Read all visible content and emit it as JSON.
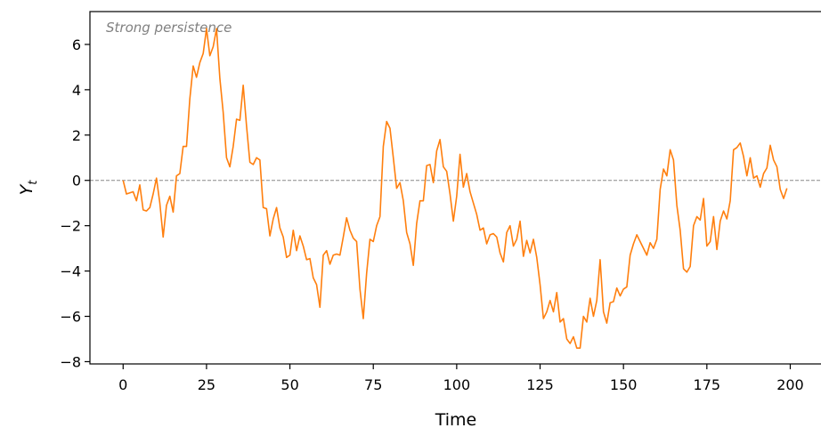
{
  "chart_data": {
    "type": "line",
    "annotation": "Strong persistence",
    "xlabel": "Time",
    "ylabel": "Y",
    "ylabel_subscript": "t",
    "color": "#ff7f0e",
    "reference_line": 0,
    "x": [
      0,
      1,
      2,
      3,
      4,
      5,
      6,
      7,
      8,
      9,
      10,
      11,
      12,
      13,
      14,
      15,
      16,
      17,
      18,
      19,
      20,
      21,
      22,
      23,
      24,
      25,
      26,
      27,
      28,
      29,
      30,
      31,
      32,
      33,
      34,
      35,
      36,
      37,
      38,
      39,
      40,
      41,
      42,
      43,
      44,
      45,
      46,
      47,
      48,
      49,
      50,
      51,
      52,
      53,
      54,
      55,
      56,
      57,
      58,
      59,
      60,
      61,
      62,
      63,
      64,
      65,
      66,
      67,
      68,
      69,
      70,
      71,
      72,
      73,
      74,
      75,
      76,
      77,
      78,
      79,
      80,
      81,
      82,
      83,
      84,
      85,
      86,
      87,
      88,
      89,
      90,
      91,
      92,
      93,
      94,
      95,
      96,
      97,
      98,
      99,
      100,
      101,
      102,
      103,
      104,
      105,
      106,
      107,
      108,
      109,
      110,
      111,
      112,
      113,
      114,
      115,
      116,
      117,
      118,
      119,
      120,
      121,
      122,
      123,
      124,
      125,
      126,
      127,
      128,
      129,
      130,
      131,
      132,
      133,
      134,
      135,
      136,
      137,
      138,
      139,
      140,
      141,
      142,
      143,
      144,
      145,
      146,
      147,
      148,
      149,
      150,
      151,
      152,
      153,
      154,
      155,
      156,
      157,
      158,
      159,
      160,
      161,
      162,
      163,
      164,
      165,
      166,
      167,
      168,
      169,
      170,
      171,
      172,
      173,
      174,
      175,
      176,
      177,
      178,
      179,
      180,
      181,
      182,
      183,
      184,
      185,
      186,
      187,
      188,
      189,
      190,
      191,
      192,
      193,
      194,
      195,
      196,
      197,
      198,
      199
    ],
    "values": [
      0,
      -0.6,
      -0.55,
      -0.5,
      -0.9,
      -0.2,
      -1.3,
      -1.35,
      -1.2,
      -0.6,
      0.1,
      -1.0,
      -2.5,
      -1.1,
      -0.7,
      -1.4,
      0.2,
      0.3,
      1.5,
      1.5,
      3.6,
      5.05,
      4.55,
      5.2,
      5.6,
      6.7,
      5.5,
      5.9,
      6.7,
      4.5,
      3.0,
      1.0,
      0.6,
      1.5,
      2.7,
      2.65,
      4.2,
      2.4,
      0.8,
      0.7,
      1.0,
      0.9,
      -1.2,
      -1.25,
      -2.45,
      -1.7,
      -1.2,
      -2.1,
      -2.5,
      -3.4,
      -3.3,
      -2.2,
      -3.1,
      -2.45,
      -2.9,
      -3.5,
      -3.45,
      -4.3,
      -4.6,
      -5.6,
      -3.3,
      -3.1,
      -3.7,
      -3.3,
      -3.25,
      -3.3,
      -2.5,
      -1.65,
      -2.2,
      -2.55,
      -2.7,
      -4.8,
      -6.1,
      -4.1,
      -2.6,
      -2.7,
      -2.0,
      -1.6,
      1.5,
      2.6,
      2.3,
      1.0,
      -0.35,
      -0.1,
      -0.9,
      -2.3,
      -2.8,
      -3.75,
      -1.9,
      -0.9,
      -0.9,
      0.65,
      0.7,
      -0.1,
      1.3,
      1.8,
      0.6,
      0.4,
      -0.6,
      -1.8,
      -0.7,
      1.15,
      -0.3,
      0.3,
      -0.5,
      -1.0,
      -1.5,
      -2.2,
      -2.1,
      -2.8,
      -2.4,
      -2.35,
      -2.5,
      -3.2,
      -3.6,
      -2.3,
      -2.0,
      -2.9,
      -2.6,
      -1.8,
      -3.35,
      -2.65,
      -3.2,
      -2.6,
      -3.4,
      -4.6,
      -6.1,
      -5.8,
      -5.3,
      -5.8,
      -4.95,
      -6.25,
      -6.1,
      -7.0,
      -7.2,
      -6.9,
      -7.4,
      -7.4,
      -6.0,
      -6.25,
      -5.2,
      -6.0,
      -5.3,
      -3.5,
      -5.8,
      -6.3,
      -5.4,
      -5.35,
      -4.75,
      -5.1,
      -4.8,
      -4.7,
      -3.3,
      -2.8,
      -2.4,
      -2.7,
      -3.0,
      -3.3,
      -2.75,
      -3.0,
      -2.6,
      -0.4,
      0.5,
      0.2,
      1.35,
      0.9,
      -1.1,
      -2.2,
      -3.9,
      -4.05,
      -3.8,
      -2.0,
      -1.6,
      -1.75,
      -0.8,
      -2.9,
      -2.7,
      -1.6,
      -3.05,
      -1.8,
      -1.35,
      -1.7,
      -0.9,
      1.35,
      1.45,
      1.65,
      1.05,
      0.2,
      1.0,
      0.1,
      0.2,
      -0.3,
      0.3,
      0.55,
      1.55,
      0.9,
      0.6,
      -0.4,
      -0.8,
      -0.35
    ],
    "xlim": [
      -9.95,
      208.95
    ],
    "ylim": [
      -8.1,
      7.45
    ],
    "xticks": [
      0,
      25,
      50,
      75,
      100,
      125,
      150,
      175,
      200
    ],
    "yticks": [
      {
        "value": -8,
        "label": "−8"
      },
      {
        "value": -6,
        "label": "−6"
      },
      {
        "value": -4,
        "label": "−4"
      },
      {
        "value": -2,
        "label": "−2"
      },
      0,
      2,
      4,
      6
    ]
  }
}
